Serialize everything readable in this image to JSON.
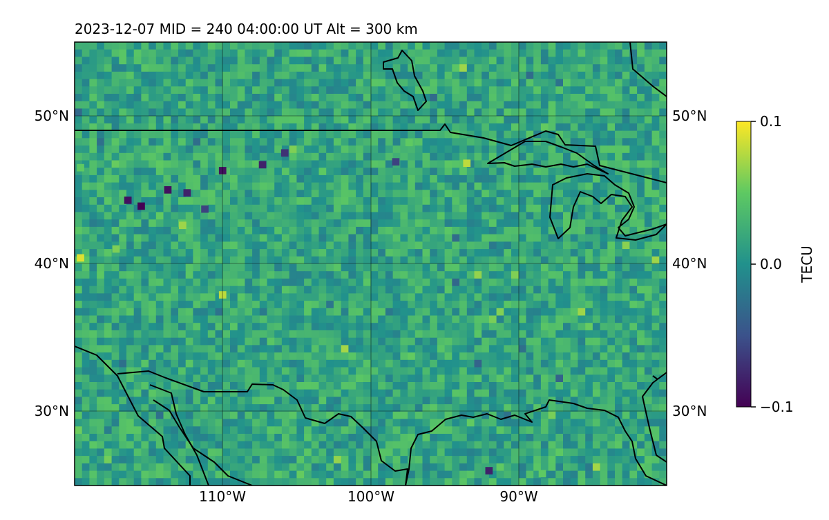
{
  "title": "2023-12-07  MID = 240    04:00:00  UT  Alt = 300 km",
  "map": {
    "lon_range": [
      -120,
      -80
    ],
    "lat_range": [
      25,
      55
    ],
    "lon_gridlines": [
      -110,
      -100,
      -90
    ],
    "lat_gridlines": [
      30,
      40,
      50
    ],
    "lon_labels": [
      "110°W",
      "100°W",
      "90°W"
    ],
    "lat_labels_left": [
      "30°N",
      "40°N",
      "50°N"
    ],
    "lat_labels_right": [
      "30°N",
      "40°N",
      "50°N"
    ],
    "field": "differential TEC",
    "colormap": "viridis",
    "dominant_value": 0.02
  },
  "colorbar": {
    "label": "TECU",
    "min": -0.1,
    "max": 0.1,
    "ticks": [
      "−0.1",
      "0.0",
      "0.1"
    ],
    "colors": [
      "#440154",
      "#3b528b",
      "#21918c",
      "#5ec962",
      "#fde725"
    ]
  },
  "anomalies": [
    {
      "lon": -116.4,
      "lat": 44.3,
      "value": -0.09
    },
    {
      "lon": -115.5,
      "lat": 43.9,
      "value": -0.1
    },
    {
      "lon": -112.4,
      "lat": 44.8,
      "value": -0.08
    },
    {
      "lon": -113.7,
      "lat": 45.0,
      "value": -0.09
    },
    {
      "lon": -110.0,
      "lat": 46.3,
      "value": -0.09
    },
    {
      "lon": -107.3,
      "lat": 46.7,
      "value": -0.08
    },
    {
      "lon": -105.8,
      "lat": 47.5,
      "value": -0.07
    },
    {
      "lon": -111.2,
      "lat": 43.7,
      "value": -0.06
    },
    {
      "lon": -98.3,
      "lat": 46.9,
      "value": -0.06
    },
    {
      "lon": -92.0,
      "lat": 26.0,
      "value": -0.08
    },
    {
      "lon": -119.6,
      "lat": 40.4,
      "value": 0.09
    },
    {
      "lon": -110.0,
      "lat": 37.9,
      "value": 0.08
    },
    {
      "lon": -112.7,
      "lat": 42.6,
      "value": 0.07
    },
    {
      "lon": -117.2,
      "lat": 41.0,
      "value": 0.06
    },
    {
      "lon": -93.5,
      "lat": 46.8,
      "value": 0.08
    },
    {
      "lon": -97.4,
      "lat": 48.2,
      "value": 0.05
    },
    {
      "lon": -88.4,
      "lat": 25.8,
      "value": 0.05
    },
    {
      "lon": -119.6,
      "lat": 46.5,
      "value": 0.05
    }
  ]
}
